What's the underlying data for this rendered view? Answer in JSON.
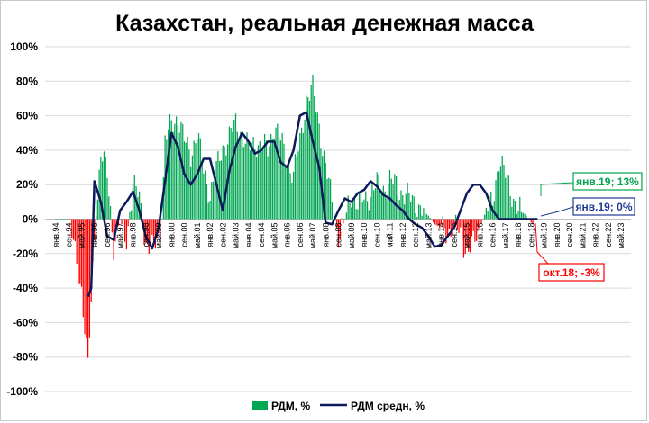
{
  "chart_data": {
    "type": "bar",
    "title": "Казахстан, реальная денежная масса",
    "ylim": [
      -100,
      100
    ],
    "yticks": [
      "100%",
      "80%",
      "60%",
      "40%",
      "20%",
      "0%",
      "-20%",
      "-40%",
      "-60%",
      "-80%",
      "-100%"
    ],
    "ytick_values": [
      100,
      80,
      60,
      40,
      20,
      0,
      -20,
      -40,
      -60,
      -80,
      -100
    ],
    "x_labels": [
      "янв.94",
      "сен.94",
      "май.95",
      "янв.96",
      "сен.96",
      "май.97",
      "янв.98",
      "сен.98",
      "май.99",
      "янв.00",
      "сен.00",
      "май.01",
      "янв.02",
      "сен.02",
      "май.03",
      "янв.04",
      "сен.04",
      "май.05",
      "янв.06",
      "сен.06",
      "май.07",
      "янв.08",
      "сен.08",
      "май.09",
      "янв.10",
      "сен.10",
      "май.11",
      "янв.12",
      "сен.12",
      "май.13",
      "янв.14",
      "сен.14",
      "май.15",
      "янв.16",
      "сен.16",
      "май.17",
      "янв.18",
      "сен.18",
      "май.19",
      "янв.20",
      "сен.20",
      "май.21",
      "янв.22",
      "сен.22",
      "май.23"
    ],
    "x_start": "янв.94",
    "months_per_label": 8,
    "bars_per_label": 4,
    "grid": true,
    "legend_position": "bottom",
    "positive_color": "#00a651",
    "negative_color": "#ff0000",
    "average_color": "#0c1a5c",
    "series": [
      {
        "name": "РДМ, %",
        "x_anchor_labels": [
          "янв.94",
          "сен.94",
          "май.95",
          "сен.95",
          "янв.96",
          "май.96",
          "сен.96",
          "янв.97",
          "май.97",
          "сен.97",
          "янв.98",
          "май.98",
          "сен.98",
          "янв.99",
          "май.99",
          "июл.99",
          "сен.99",
          "янв.00",
          "май.00",
          "сен.00",
          "янв.01",
          "май.01",
          "сен.01",
          "янв.02",
          "май.02",
          "сен.02",
          "янв.03",
          "май.03",
          "сен.03",
          "янв.04",
          "май.04",
          "сен.04",
          "янв.05",
          "май.05",
          "сен.05",
          "янв.06",
          "май.06",
          "сен.06",
          "янв.07",
          "май.07",
          "сен.07",
          "янв.08",
          "май.08",
          "сен.08",
          "янв.09",
          "май.09",
          "сен.09",
          "янв.10",
          "май.10",
          "сен.10",
          "янв.11",
          "май.11",
          "сен.11",
          "янв.12",
          "май.12",
          "сен.12",
          "янв.13",
          "май.13",
          "сен.13",
          "янв.14",
          "май.14",
          "сен.14",
          "янв.15",
          "май.15",
          "сен.15",
          "янв.16",
          "май.16",
          "сен.16",
          "янв.17",
          "май.17",
          "сен.17",
          "янв.18",
          "май.18",
          "сен.18",
          "окт.18"
        ],
        "x_anchor_values": [
          0,
          0,
          -40,
          -87,
          -10,
          38,
          26,
          -15,
          0,
          -12,
          20,
          12,
          -14,
          -18,
          -10,
          0,
          45,
          55,
          60,
          45,
          38,
          50,
          28,
          15,
          28,
          42,
          48,
          55,
          50,
          40,
          45,
          42,
          40,
          55,
          45,
          35,
          25,
          45,
          70,
          75,
          55,
          30,
          10,
          -10,
          0,
          15,
          8,
          12,
          15,
          20,
          18,
          22,
          20,
          15,
          12,
          10,
          5,
          2,
          -3,
          -5,
          -8,
          -3,
          -10,
          -18,
          -15,
          -5,
          5,
          10,
          35,
          25,
          15,
          5,
          3,
          -2,
          -3
        ]
      },
      {
        "name": "РДМ средн, %",
        "x_anchor_labels": [
          "сен.95",
          "ноя.95",
          "янв.96",
          "май.96",
          "сен.96",
          "янв.97",
          "май.97",
          "сен.97",
          "янв.98",
          "май.98",
          "сен.98",
          "янв.99",
          "май.99",
          "сен.99",
          "янв.00",
          "май.00",
          "сен.00",
          "янв.01",
          "май.01",
          "сен.01",
          "янв.02",
          "май.02",
          "сен.02",
          "янв.03",
          "май.03",
          "сен.03",
          "янв.04",
          "май.04",
          "сен.04",
          "янв.05",
          "май.05",
          "сен.05",
          "янв.06",
          "май.06",
          "сен.06",
          "янв.07",
          "май.07",
          "сен.07",
          "янв.08",
          "май.08",
          "сен.08",
          "янв.09",
          "май.09",
          "сен.09",
          "янв.10",
          "май.10",
          "сен.10",
          "янв.11",
          "май.11",
          "сен.11",
          "янв.12",
          "май.12",
          "сен.12",
          "янв.13",
          "май.13",
          "сен.13",
          "янв.14",
          "май.14",
          "сен.14",
          "янв.15",
          "май.15",
          "сен.15",
          "янв.16",
          "май.16",
          "сен.16",
          "янв.17",
          "май.17",
          "сен.17",
          "янв.18",
          "май.18",
          "сен.18",
          "янв.19"
        ],
        "x_anchor_values": [
          -45,
          -40,
          22,
          10,
          -10,
          -12,
          5,
          10,
          16,
          5,
          -10,
          -17,
          -5,
          22,
          50,
          42,
          26,
          20,
          26,
          35,
          35,
          20,
          5,
          28,
          42,
          50,
          45,
          38,
          40,
          45,
          45,
          33,
          30,
          40,
          60,
          62,
          45,
          30,
          -2,
          -3,
          5,
          12,
          10,
          15,
          17,
          22,
          19,
          14,
          12,
          8,
          5,
          0,
          -3,
          -5,
          -10,
          -16,
          -15,
          -10,
          -5,
          5,
          15,
          20,
          20,
          15,
          5,
          0,
          0,
          0,
          0,
          0,
          0,
          0
        ]
      }
    ],
    "legend": [
      "РДМ, %",
      "РДМ средн, %"
    ],
    "callouts": [
      {
        "id": "green",
        "text": "янв.19; 13%",
        "color": "#00a651"
      },
      {
        "id": "navy",
        "text": "янв.19; 0%",
        "color": "#1f3a93"
      },
      {
        "id": "red",
        "text": "окт.18; -3%",
        "color": "#ff0000"
      }
    ]
  }
}
